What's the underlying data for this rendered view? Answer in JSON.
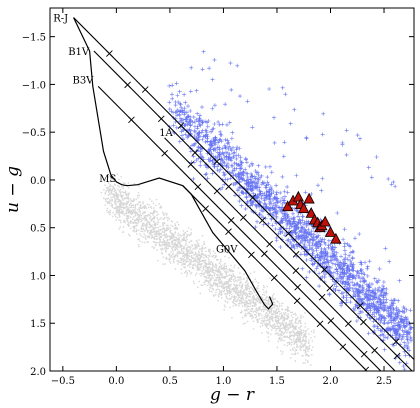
{
  "chart_data": {
    "type": "scatter",
    "title": "",
    "xlabel": "g − r",
    "ylabel": "u − g",
    "xlim": [
      -0.62,
      2.78
    ],
    "ylim": [
      2.0,
      -1.8
    ],
    "y_inverted": true,
    "grid": false,
    "x_ticks": [
      -0.5,
      0.0,
      0.5,
      1.0,
      1.5,
      2.0,
      2.5
    ],
    "x_tick_labels": [
      "−0.5",
      "0.0",
      "0.5",
      "1.0",
      "1.5",
      "2.0",
      "2.5"
    ],
    "y_ticks": [
      -1.5,
      -1.0,
      -0.5,
      0.0,
      0.5,
      1.0,
      1.5,
      2.0
    ],
    "y_tick_labels": [
      "−1.5",
      "−1.0",
      "−0.5",
      "0.0",
      "0.5",
      "1.0",
      "1.5",
      "2.0"
    ],
    "colors": {
      "background_points": "#b4b4b4",
      "blue_plus": "#3344ee",
      "triangles": "#c0100a",
      "lines": "#000000"
    },
    "curve_labels": [
      {
        "text": "R-J",
        "x": -0.59,
        "y": -1.7
      },
      {
        "text": "B1V",
        "x": -0.45,
        "y": -1.35
      },
      {
        "text": "B3V",
        "x": -0.41,
        "y": -1.05
      },
      {
        "text": "1A",
        "x": 0.4,
        "y": -0.5
      },
      {
        "text": "MS",
        "x": -0.16,
        "y": -0.02
      },
      {
        "text": "G0V",
        "x": 0.93,
        "y": 0.72
      }
    ],
    "reddening_lines": [
      {
        "name": "R-J",
        "x": [
          -0.4,
          2.78
        ],
        "y": [
          -1.7,
          1.88
        ]
      },
      {
        "name": "B1V",
        "x": [
          -0.21,
          2.78
        ],
        "y": [
          -1.35,
          2.02
        ]
      },
      {
        "name": "B3V",
        "x": [
          -0.17,
          2.78
        ],
        "y": [
          -0.98,
          2.35
        ]
      },
      {
        "name": "1A",
        "x": [
          0.45,
          2.78
        ],
        "y": [
          -0.44,
          2.2
        ]
      },
      {
        "name": "G0V",
        "x": [
          0.62,
          2.65
        ],
        "y": [
          0.06,
          2.35
        ]
      }
    ],
    "main_sequence": {
      "x": [
        -0.4,
        -0.25,
        -0.22,
        -0.12,
        -0.05,
        0.0,
        0.05,
        0.1,
        0.2,
        0.4,
        0.62,
        0.7,
        0.8,
        0.9,
        1.05,
        1.2,
        1.3,
        1.38,
        1.42,
        1.46,
        1.43
      ],
      "y": [
        -1.7,
        -1.35,
        -0.98,
        -0.3,
        -0.05,
        0.02,
        0.05,
        0.06,
        0.05,
        -0.02,
        0.06,
        0.15,
        0.35,
        0.55,
        0.75,
        0.95,
        1.15,
        1.3,
        1.35,
        1.3,
        1.22
      ]
    },
    "triangles": {
      "x": [
        1.6,
        1.65,
        1.7,
        1.72,
        1.75,
        1.8,
        1.82,
        1.85,
        1.88,
        1.9,
        1.92,
        1.95,
        2.0,
        2.05
      ],
      "y": [
        0.28,
        0.22,
        0.18,
        0.26,
        0.3,
        0.2,
        0.35,
        0.42,
        0.45,
        0.5,
        0.48,
        0.44,
        0.55,
        0.62
      ]
    }
  }
}
